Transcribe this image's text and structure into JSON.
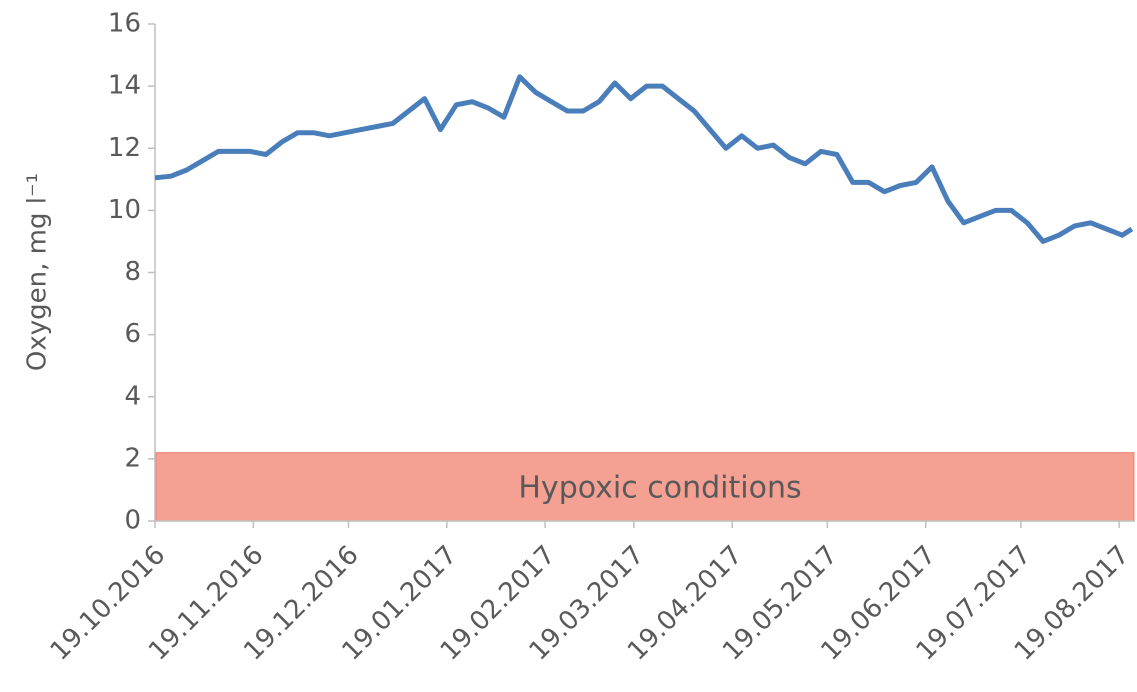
{
  "chart_data": {
    "type": "line",
    "y_label": "Oxygen, mg l⁻¹",
    "x": [
      "2016-10-19",
      "2016-10-24",
      "2016-10-29",
      "2016-11-03",
      "2016-11-08",
      "2016-11-13",
      "2016-11-18",
      "2016-11-23",
      "2016-11-28",
      "2016-12-03",
      "2016-12-08",
      "2016-12-13",
      "2016-12-18",
      "2016-12-23",
      "2016-12-28",
      "2017-01-02",
      "2017-01-07",
      "2017-01-12",
      "2017-01-17",
      "2017-01-22",
      "2017-01-27",
      "2017-02-01",
      "2017-02-06",
      "2017-02-11",
      "2017-02-16",
      "2017-02-21",
      "2017-02-26",
      "2017-03-03",
      "2017-03-08",
      "2017-03-13",
      "2017-03-18",
      "2017-03-23",
      "2017-03-28",
      "2017-04-02",
      "2017-04-07",
      "2017-04-12",
      "2017-04-17",
      "2017-04-22",
      "2017-04-27",
      "2017-05-02",
      "2017-05-07",
      "2017-05-12",
      "2017-05-17",
      "2017-05-22",
      "2017-05-27",
      "2017-06-01",
      "2017-06-06",
      "2017-06-11",
      "2017-06-16",
      "2017-06-21",
      "2017-06-26",
      "2017-07-01",
      "2017-07-06",
      "2017-07-11",
      "2017-07-16",
      "2017-07-21",
      "2017-07-26",
      "2017-07-31",
      "2017-08-05",
      "2017-08-10",
      "2017-08-15",
      "2017-08-20",
      "2017-08-23"
    ],
    "series": [
      {
        "name": "Oxygen",
        "color": "#4a7ebb",
        "values": [
          11.05,
          11.1,
          11.3,
          11.6,
          11.9,
          11.9,
          11.9,
          11.8,
          12.2,
          12.5,
          12.5,
          12.4,
          12.5,
          12.6,
          12.7,
          12.8,
          13.2,
          13.6,
          12.6,
          13.4,
          13.5,
          13.3,
          13.0,
          14.3,
          13.8,
          13.5,
          13.2,
          13.2,
          13.5,
          14.1,
          13.6,
          14.0,
          14.0,
          13.6,
          13.2,
          12.6,
          12.0,
          12.4,
          12.0,
          12.1,
          11.7,
          11.5,
          11.9,
          11.8,
          10.9,
          10.9,
          10.6,
          10.8,
          10.9,
          11.4,
          10.3,
          9.6,
          9.8,
          10.0,
          10.0,
          9.6,
          9.0,
          9.2,
          9.5,
          9.6,
          9.4,
          9.2,
          9.4
        ]
      }
    ],
    "xlim": [
      "2016-10-19",
      "2017-08-24"
    ],
    "xticks": [
      {
        "value": "2016-10-19",
        "label": "19.10.2016"
      },
      {
        "value": "2016-11-19",
        "label": "19.11.2016"
      },
      {
        "value": "2016-12-19",
        "label": "19.12.2016"
      },
      {
        "value": "2017-01-19",
        "label": "19.01.2017"
      },
      {
        "value": "2017-02-19",
        "label": "19.02.2017"
      },
      {
        "value": "2017-03-19",
        "label": "19.03.2017"
      },
      {
        "value": "2017-04-19",
        "label": "19.04.2017"
      },
      {
        "value": "2017-05-19",
        "label": "19.05.2017"
      },
      {
        "value": "2017-06-19",
        "label": "19.06.2017"
      },
      {
        "value": "2017-07-19",
        "label": "19.07.2017"
      },
      {
        "value": "2017-08-19",
        "label": "19.08.2017"
      }
    ],
    "ylim": [
      0,
      16
    ],
    "yticks": [
      0,
      2,
      4,
      6,
      8,
      10,
      12,
      14,
      16
    ],
    "grid": false,
    "annotation": {
      "text": "Hypoxic conditions",
      "y_range": [
        0,
        2.2
      ],
      "color": "#f4a093"
    }
  }
}
